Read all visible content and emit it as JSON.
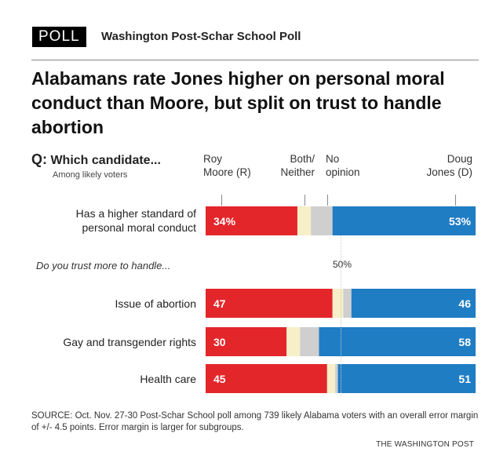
{
  "header": {
    "badge": "POLL",
    "source_name": "Washington Post-Schar School Poll",
    "title": "Alabamans rate Jones higher on personal moral conduct than Moore, but split on trust to handle abortion"
  },
  "question": {
    "prefix": "Q:",
    "text": "Which candidate...",
    "subtitle": "Among likely voters"
  },
  "chart_data": {
    "type": "bar",
    "orientation": "horizontal-stacked",
    "title": "Alabamans rate Jones higher on personal moral conduct than Moore, but split on trust to handle abortion",
    "series": [
      {
        "name": "Roy Moore (R)",
        "color": "#e3262a",
        "values": [
          34,
          47,
          30,
          45
        ]
      },
      {
        "name": "Both/ Neither",
        "color": "#f6efc8",
        "values": [
          5,
          4,
          5,
          3
        ]
      },
      {
        "name": "No opinion",
        "color": "#cfcfcf",
        "values": [
          8,
          3,
          7,
          1
        ]
      },
      {
        "name": "Doug Jones (D)",
        "color": "#1f7dc4",
        "values": [
          53,
          46,
          58,
          51
        ]
      }
    ],
    "series_header_lines": [
      [
        "Roy",
        "Moore (R)"
      ],
      [
        "Both/",
        "Neither"
      ],
      [
        "No",
        "opinion"
      ],
      [
        "Doug",
        "Jones (D)"
      ]
    ],
    "categories": [
      "Has a higher standard of personal moral conduct",
      "Issue of abortion",
      "Gay and transgender rights",
      "Health care"
    ],
    "category_lines": [
      [
        "Has a higher standard of",
        "personal moral conduct"
      ],
      [
        "Issue of abortion"
      ],
      [
        "Gay and transgender rights"
      ],
      [
        "Health care"
      ]
    ],
    "data_labels": [
      [
        "34%",
        "53%"
      ],
      [
        "47",
        "46"
      ],
      [
        "30",
        "58"
      ],
      [
        "45",
        "51"
      ]
    ],
    "section_label": "Do you trust more to handle...",
    "reference_line": {
      "value": 50,
      "label": "50%"
    },
    "xlim": [
      0,
      100
    ]
  },
  "footer": {
    "source": "SOURCE: Oct. Nov. 27-30 Post-Schar School poll among 739 likely Alabama voters with an overall error margin of +/- 4.5 points. Error margin is larger for subgroups.",
    "credit": "THE WASHINGTON POST"
  }
}
